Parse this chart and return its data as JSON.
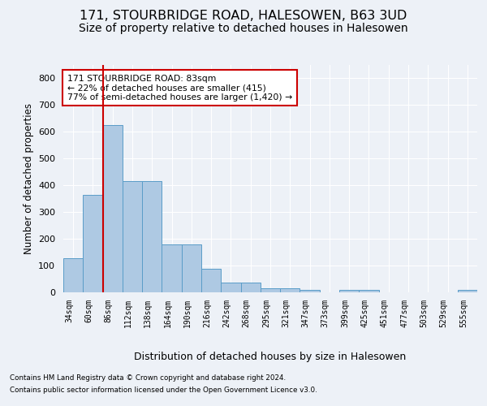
{
  "title1": "171, STOURBRIDGE ROAD, HALESOWEN, B63 3UD",
  "title2": "Size of property relative to detached houses in Halesowen",
  "xlabel": "Distribution of detached houses by size in Halesowen",
  "ylabel": "Number of detached properties",
  "footer1": "Contains HM Land Registry data © Crown copyright and database right 2024.",
  "footer2": "Contains public sector information licensed under the Open Government Licence v3.0.",
  "annotation_line1": "171 STOURBRIDGE ROAD: 83sqm",
  "annotation_line2": "← 22% of detached houses are smaller (415)",
  "annotation_line3": "77% of semi-detached houses are larger (1,420) →",
  "bar_color": "#aec9e3",
  "bar_edge_color": "#5a9dc8",
  "ref_line_color": "#cc0000",
  "categories": [
    "34sqm",
    "60sqm",
    "86sqm",
    "112sqm",
    "138sqm",
    "164sqm",
    "190sqm",
    "216sqm",
    "242sqm",
    "268sqm",
    "295sqm",
    "321sqm",
    "347sqm",
    "373sqm",
    "399sqm",
    "425sqm",
    "451sqm",
    "477sqm",
    "503sqm",
    "529sqm",
    "555sqm"
  ],
  "values": [
    128,
    365,
    625,
    415,
    415,
    180,
    180,
    88,
    35,
    35,
    15,
    15,
    8,
    0,
    8,
    8,
    0,
    0,
    0,
    0,
    8
  ],
  "ref_bin_index": 2,
  "ylim": [
    0,
    850
  ],
  "yticks": [
    0,
    100,
    200,
    300,
    400,
    500,
    600,
    700,
    800
  ],
  "bg_color": "#edf1f7",
  "grid_color": "#ffffff",
  "title1_fontsize": 11.5,
  "title2_fontsize": 10
}
